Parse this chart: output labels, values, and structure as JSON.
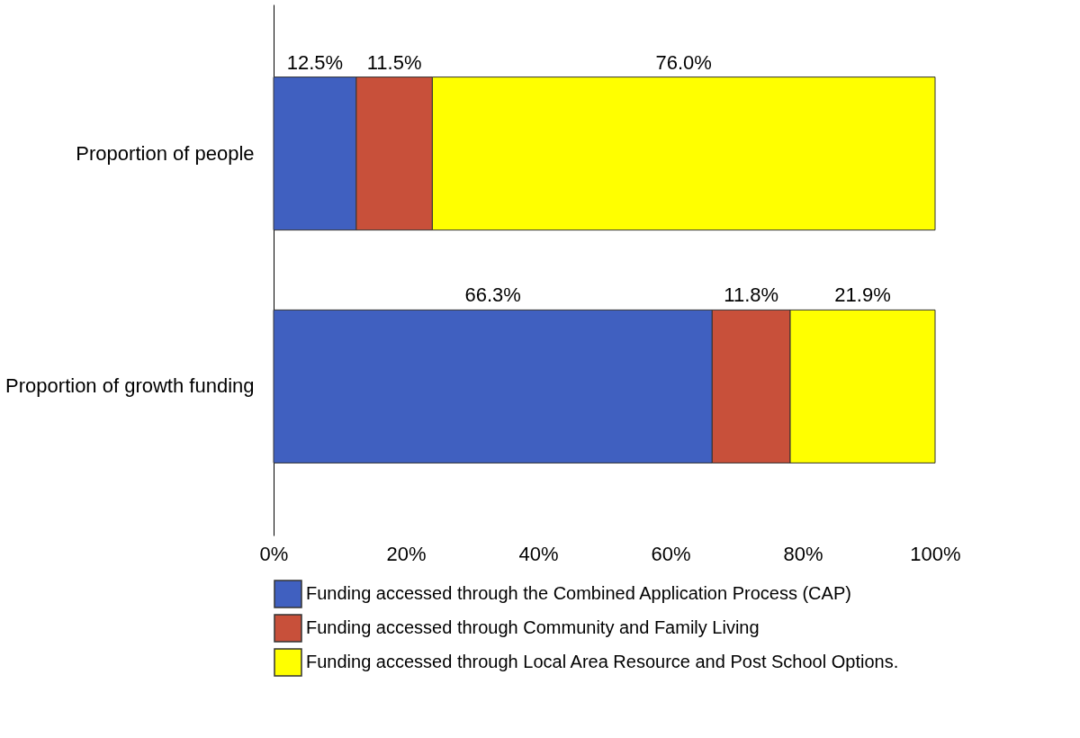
{
  "chart_data": {
    "type": "bar",
    "orientation": "horizontal",
    "stacked": true,
    "categories": [
      "Proportion of people",
      "Proportion of growth funding"
    ],
    "series": [
      {
        "name": "Funding accessed through the Combined Application Process (CAP)",
        "color": "#4060c0",
        "values": [
          12.5,
          66.3
        ],
        "value_labels": [
          "12.5%",
          "66.3%"
        ]
      },
      {
        "name": "Funding accessed through Community and Family Living",
        "color": "#c8503a",
        "values": [
          11.5,
          11.8
        ],
        "value_labels": [
          "11.5%",
          "11.8%"
        ]
      },
      {
        "name": "Funding accessed through Local Area Resource and Post School Options.",
        "color": "#ffff00",
        "values": [
          76.0,
          21.9
        ],
        "value_labels": [
          "76.0%",
          "21.9%"
        ]
      }
    ],
    "xlim": [
      0,
      100
    ],
    "xticks": [
      {
        "value": 0,
        "label": "0%"
      },
      {
        "value": 20,
        "label": "20%"
      },
      {
        "value": 40,
        "label": "40%"
      },
      {
        "value": 60,
        "label": "60%"
      },
      {
        "value": 80,
        "label": "80%"
      },
      {
        "value": 100,
        "label": "100%"
      }
    ],
    "grid": false,
    "legend": "bottom"
  }
}
